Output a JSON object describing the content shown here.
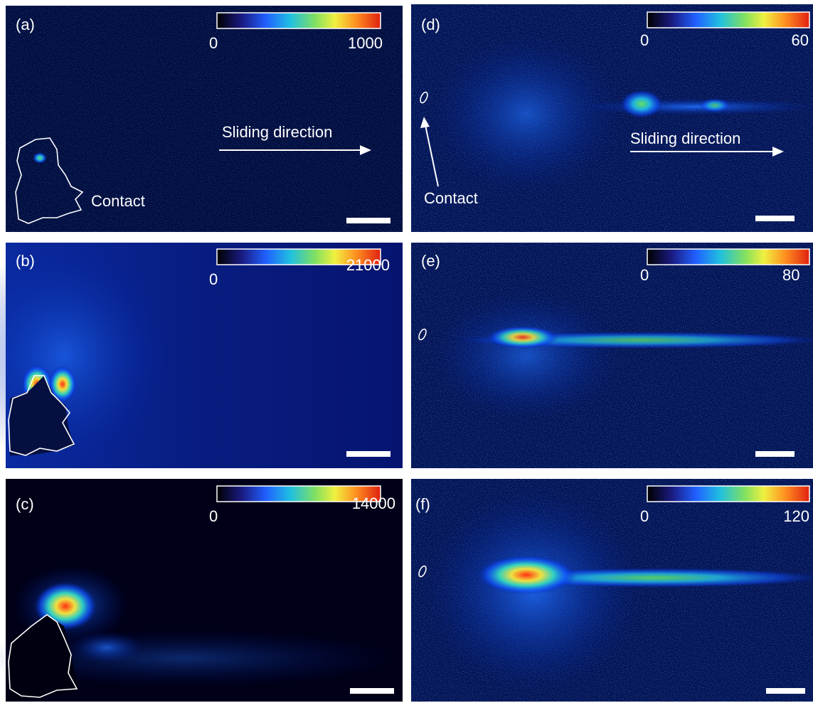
{
  "panels": [
    {
      "label": "(a)",
      "colorbar": {
        "min": "0",
        "max": "1000"
      },
      "annotations": [
        "Sliding direction",
        "Contact"
      ]
    },
    {
      "label": "(b)",
      "colorbar": {
        "min": "0",
        "max": "21000"
      }
    },
    {
      "label": "(c)",
      "colorbar": {
        "min": "0",
        "max": "14000"
      }
    },
    {
      "label": "(d)",
      "colorbar": {
        "min": "0",
        "max": "60"
      },
      "annotations": [
        "Sliding direction",
        "Contact"
      ]
    },
    {
      "label": "(e)",
      "colorbar": {
        "min": "0",
        "max": "80"
      }
    },
    {
      "label": "(f)",
      "colorbar": {
        "min": "0",
        "max": "120"
      }
    }
  ]
}
